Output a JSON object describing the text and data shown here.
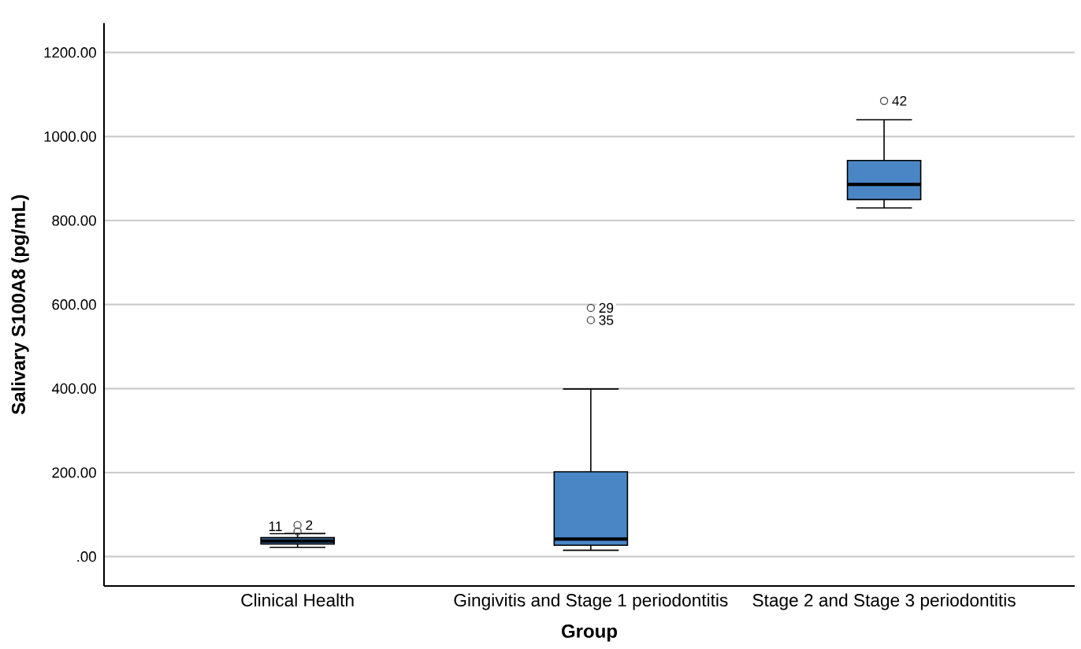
{
  "chart_data": {
    "type": "box",
    "xlabel": "Group",
    "ylabel": "Salivary S100A8 (pg/mL)",
    "categories": [
      "Clinical Health",
      "Gingivitis and Stage 1 periodontitis",
      "Stage 2 and Stage 3 periodontitis"
    ],
    "boxes": [
      {
        "low": 22,
        "q1": 30,
        "median": 37,
        "q3": 45,
        "high": 55,
        "outliers": [
          60,
          75
        ]
      },
      {
        "low": 15,
        "q1": 27,
        "median": 42,
        "q3": 202,
        "high": 399,
        "outliers": [
          563,
          592
        ]
      },
      {
        "low": 830,
        "q1": 850,
        "median": 886,
        "q3": 943,
        "high": 1040,
        "outliers": [
          1085
        ]
      }
    ],
    "color": "#4a86c5",
    "marker": "circle",
    "grid": "y",
    "ylim": [
      -70,
      1270
    ],
    "yticks": [
      {
        "value": 0,
        "label": ".00"
      },
      {
        "value": 200,
        "label": "200.00"
      },
      {
        "value": 400,
        "label": "400.00"
      },
      {
        "value": 600,
        "label": "600.00"
      },
      {
        "value": 800,
        "label": "800.00"
      },
      {
        "value": 1000,
        "label": "1000.00"
      },
      {
        "value": 1200,
        "label": "1200.00"
      }
    ],
    "annotations": [
      "11",
      "2",
      "35",
      "29",
      "42"
    ]
  }
}
